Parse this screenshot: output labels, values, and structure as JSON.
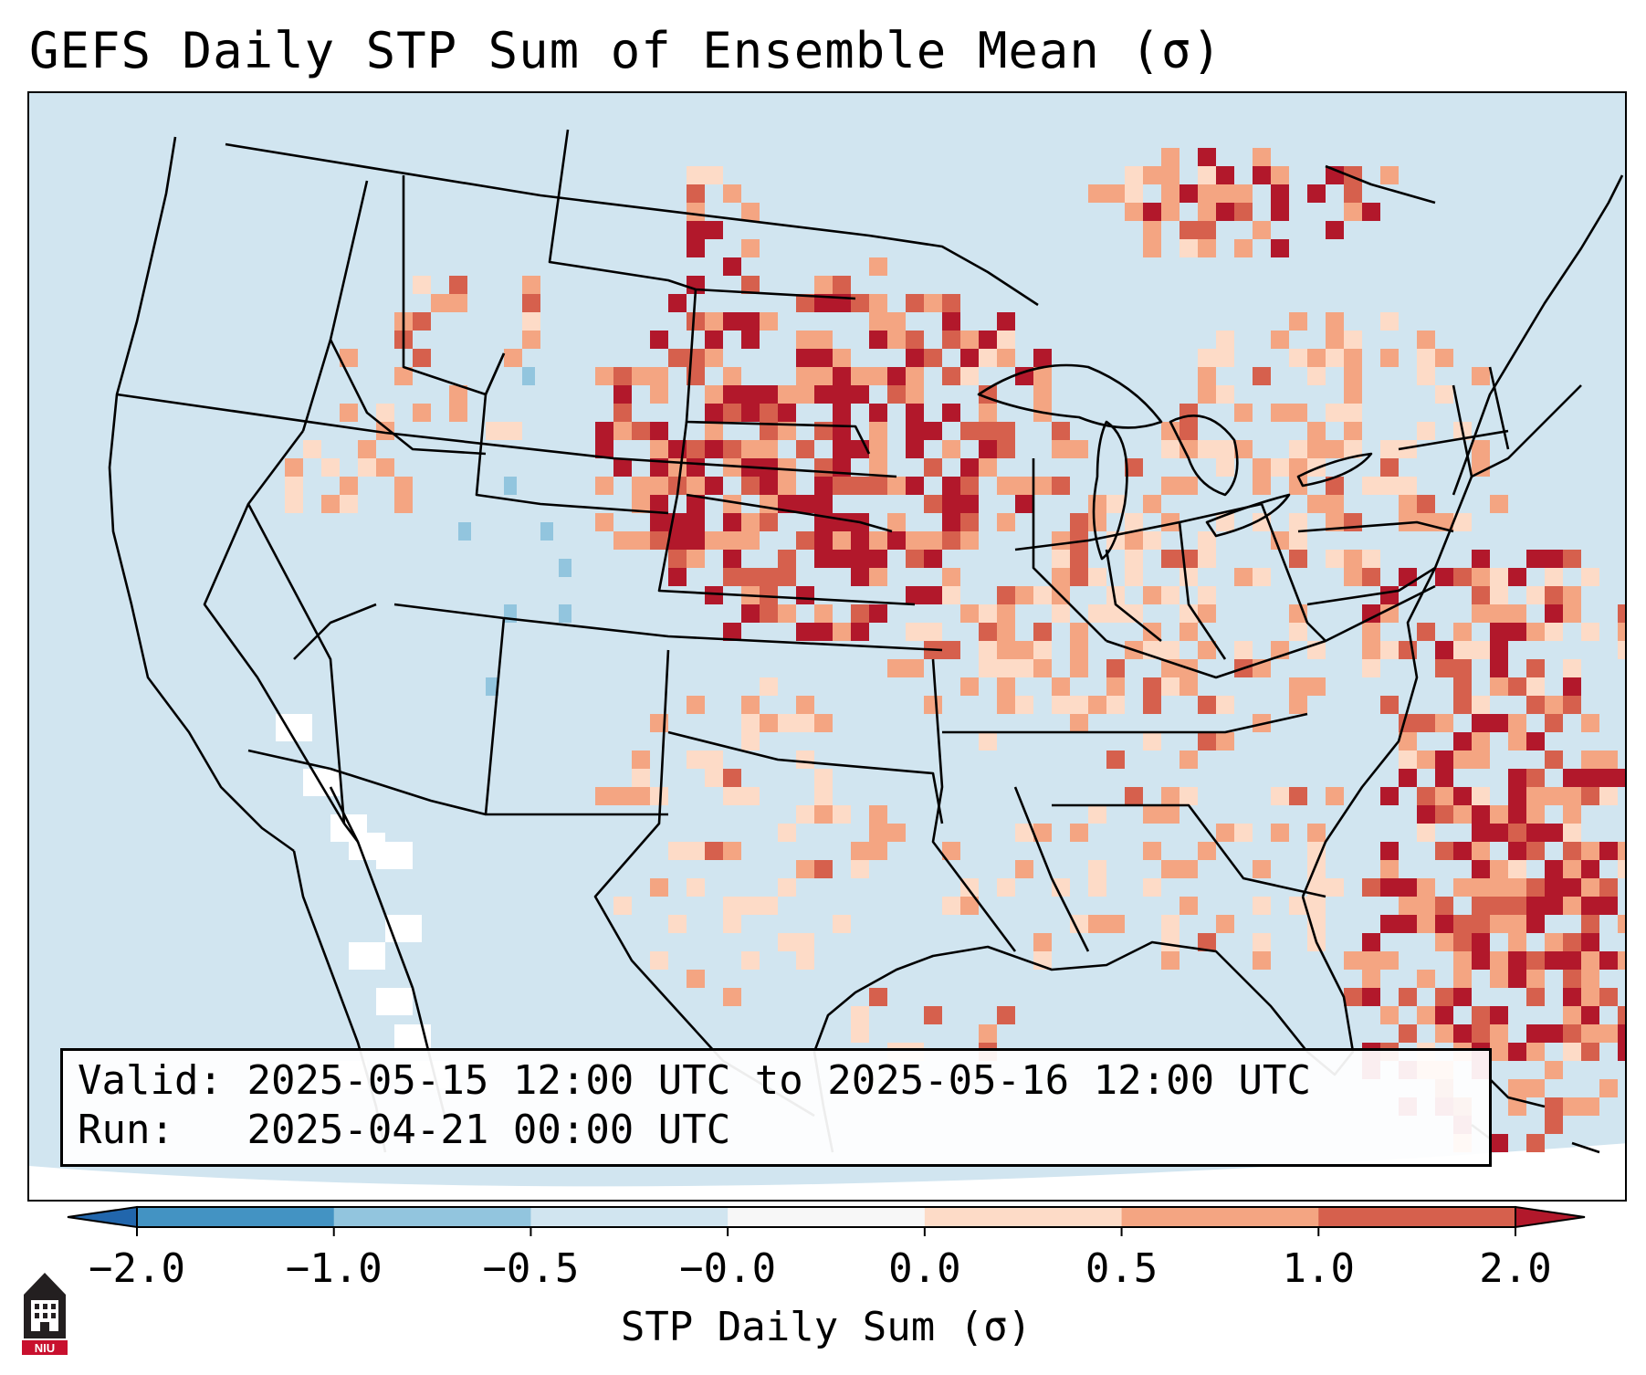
{
  "figure": {
    "title": "GEFS Daily STP Sum of Ensemble Mean (σ)",
    "valid_label": "Valid:",
    "valid_range": "2025-05-15 12:00 UTC to 2025-05-16 12:00 UTC",
    "run_label": "Run:",
    "run_time": "2025-04-21 00:00 UTC",
    "logo_text": "NIU"
  },
  "colorbar": {
    "label": "STP Daily Sum (σ)",
    "tick_labels": [
      "−2.0",
      "−1.0",
      "−0.5",
      "−0.0",
      "0.0",
      "0.5",
      "1.0",
      "2.0"
    ],
    "bins": [
      {
        "range": "<-2.0",
        "color": "#2166ac"
      },
      {
        "range": "-2.0 to -1.0",
        "color": "#4393c3"
      },
      {
        "range": "-1.0 to -0.5",
        "color": "#92c5de"
      },
      {
        "range": "-0.5 to -0.0",
        "color": "#d1e5f0"
      },
      {
        "range": "-0.0 to 0.0",
        "color": "#f7f7f7"
      },
      {
        "range": "0.0 to 0.5",
        "color": "#fddbc7"
      },
      {
        "range": "0.5 to 1.0",
        "color": "#f4a582"
      },
      {
        "range": "1.0 to 2.0",
        "color": "#d6604d"
      },
      {
        "range": ">2.0",
        "color": "#b2182b"
      }
    ]
  },
  "colors": {
    "background": "#d1e5f0",
    "low": "#fddbc7",
    "mid": "#f4a582",
    "high": "#d6604d",
    "max": "#b2182b",
    "neg": "#92c5de",
    "zero": "#ffffff",
    "logo_dark": "#231f20",
    "logo_red": "#c8102e"
  }
}
